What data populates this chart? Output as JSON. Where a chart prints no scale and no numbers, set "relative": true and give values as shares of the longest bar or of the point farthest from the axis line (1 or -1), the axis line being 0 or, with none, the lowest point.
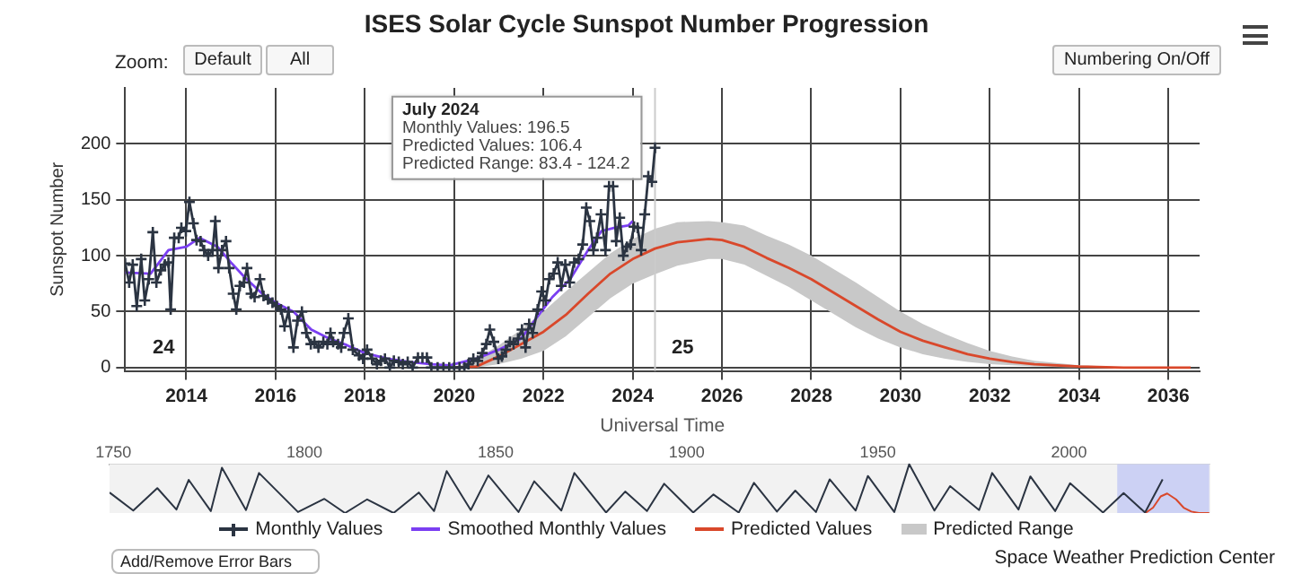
{
  "chart_data": [
    {
      "type": "line",
      "title": "ISES Solar Cycle Sunspot Number Progression",
      "xlabel": "Universal Time",
      "ylabel": "Sunspot Number",
      "xlim": [
        2012.63,
        2036.7
      ],
      "ylim": [
        -3,
        250
      ],
      "xticks": [
        2014,
        2016,
        2018,
        2020,
        2022,
        2024,
        2026,
        2028,
        2030,
        2032,
        2034,
        2036
      ],
      "yticks": [
        0,
        50,
        100,
        150,
        200
      ],
      "grid": true,
      "legend": "bottom",
      "series": [
        {
          "name": "Monthly Values",
          "type": "line",
          "marker": "cross",
          "color": "#2b3442",
          "x": [
            2012.63,
            2012.72,
            2012.8,
            2012.89,
            2012.99,
            2013.07,
            2013.16,
            2013.25,
            2013.33,
            2013.43,
            2013.52,
            2013.6,
            2013.65,
            2013.73,
            2013.83,
            2013.89,
            2013.99,
            2014.07,
            2014.16,
            2014.23,
            2014.32,
            2014.4,
            2014.49,
            2014.59,
            2014.65,
            2014.72,
            2014.8,
            2014.89,
            2014.96,
            2015.05,
            2015.12,
            2015.2,
            2015.29,
            2015.36,
            2015.45,
            2015.53,
            2015.65,
            2015.73,
            2015.83,
            2015.93,
            2016.03,
            2016.12,
            2016.2,
            2016.29,
            2016.4,
            2016.49,
            2016.59,
            2016.69,
            2016.79,
            2016.87,
            2016.96,
            2017.07,
            2017.16,
            2017.23,
            2017.29,
            2017.4,
            2017.47,
            2017.53,
            2017.63,
            2017.73,
            2017.87,
            2017.96,
            2018.05,
            2018.16,
            2018.27,
            2018.36,
            2018.45,
            2018.56,
            2018.65,
            2018.76,
            2018.85,
            2018.96,
            2019.07,
            2019.19,
            2019.29,
            2019.39,
            2019.49,
            2019.63,
            2019.76,
            2019.89,
            2020,
            2020.12,
            2020.23,
            2020.32,
            2020.43,
            2020.53,
            2020.63,
            2020.72,
            2020.8,
            2020.89,
            2020.99,
            2021.07,
            2021.16,
            2021.25,
            2021.33,
            2021.43,
            2021.52,
            2021.6,
            2021.68,
            2021.76,
            2021.87,
            2021.96,
            2022.05,
            2022.13,
            2022.23,
            2022.32,
            2022.4,
            2022.49,
            2022.59,
            2022.69,
            2022.79,
            2022.88,
            2022.96,
            2023.04,
            2023.12,
            2023.2,
            2023.29,
            2023.39,
            2023.47,
            2023.56,
            2023.63,
            2023.71,
            2023.79,
            2023.87,
            2023.95,
            2024.03,
            2024.11,
            2024.19,
            2024.27,
            2024.35,
            2024.43,
            2024.5
          ],
          "values": [
            93,
            76,
            92,
            55,
            97,
            60,
            79,
            121,
            76,
            87,
            92,
            94,
            52,
            116,
            116,
            125,
            122,
            148,
            129,
            114,
            113,
            105,
            100,
            105,
            131,
            89,
            105,
            113,
            89,
            66,
            52,
            73,
            76,
            89,
            66,
            63,
            79,
            64,
            61,
            58,
            55,
            52,
            37,
            50,
            18,
            42,
            50,
            31,
            21,
            23,
            18,
            23,
            21,
            31,
            23,
            21,
            18,
            31,
            44,
            16,
            11,
            8,
            16,
            8,
            3,
            6,
            8,
            0,
            6,
            5,
            3,
            5,
            0,
            9,
            9,
            9,
            0,
            0,
            0,
            0,
            0,
            0,
            0,
            3,
            8,
            6,
            13,
            21,
            34,
            23,
            8,
            10,
            16,
            23,
            21,
            26,
            34,
            18,
            39,
            31,
            52,
            68,
            60,
            79,
            84,
            94,
            73,
            92,
            76,
            94,
            97,
            110,
            143,
            131,
            105,
            116,
            137,
            105,
            162,
            162,
            113,
            134,
            100,
            108,
            110,
            126,
            125,
            105,
            137,
            171,
            166,
            196.5
          ]
        },
        {
          "name": "Smoothed Monthly Values",
          "type": "line",
          "color": "#7b3ff2",
          "x": [
            2012.63,
            2013.2,
            2013.6,
            2014,
            2014.3,
            2014.7,
            2015,
            2015.3,
            2015.7,
            2016,
            2016.4,
            2016.8,
            2017.2,
            2017.6,
            2018,
            2018.5,
            2019,
            2019.5,
            2019.9,
            2020.5,
            2021,
            2021.5,
            2021.8,
            2022.2,
            2022.6,
            2023,
            2023.3,
            2023.6,
            2023.9,
            2024
          ],
          "values": [
            85,
            84,
            105,
            108,
            116,
            108,
            94,
            81,
            66,
            58,
            50,
            34,
            26,
            20,
            13,
            8,
            5,
            3,
            2,
            8,
            16,
            26,
            42,
            63,
            79,
            105,
            122,
            125,
            127,
            131
          ]
        },
        {
          "name": "Predicted Values",
          "type": "line",
          "color": "#d9482b",
          "x": [
            2020,
            2020.5,
            2021,
            2021.5,
            2022,
            2022.5,
            2023,
            2023.5,
            2024,
            2024.5,
            2025,
            2025.7,
            2026,
            2026.5,
            2027,
            2027.5,
            2028,
            2028.5,
            2029,
            2029.5,
            2030,
            2030.5,
            2031,
            2031.5,
            2032,
            2032.5,
            2033,
            2034,
            2035,
            2036.5
          ],
          "values": [
            0,
            1,
            10,
            21,
            32,
            47,
            66,
            84,
            97,
            106.4,
            112,
            115,
            114,
            108,
            98,
            89,
            79,
            67,
            55,
            43,
            32,
            24,
            18,
            12,
            8,
            5,
            3,
            1,
            0,
            0
          ],
          "lower": [
            0,
            0,
            3,
            8,
            15,
            28,
            45,
            62,
            75,
            83.4,
            91,
            97,
            97,
            92,
            82,
            72,
            60,
            48,
            36,
            26,
            18,
            12,
            8,
            5,
            3,
            2,
            1,
            0,
            0,
            0
          ],
          "upper": [
            0,
            8,
            20,
            34,
            50,
            68,
            85,
            102,
            115,
            124.2,
            130,
            131,
            130,
            127,
            118,
            110,
            100,
            88,
            76,
            63,
            50,
            39,
            30,
            22,
            15,
            10,
            6,
            2,
            0.5,
            0
          ]
        },
        {
          "name": "Predicted Range",
          "type": "area",
          "color": "#c8c8c8"
        }
      ],
      "ref_lines": [
        {
          "axis": "x",
          "value": 2024.5,
          "color": "#cccccc"
        }
      ],
      "annotations": [
        "24",
        "25",
        {
          "text": "July 2024\nMonthly Values: 196.5\nPredicted Values: 106.4\nPredicted Range: 83.4 - 124.2",
          "x": 2024.5,
          "y": 196.5
        },
        "Zoom:",
        "Default",
        "All",
        "Numbering On/Off",
        "Add/Remove Error Bars",
        "Space Weather Prediction Center"
      ]
    },
    {
      "type": "line",
      "relative": true,
      "xlim": [
        1749,
        2037
      ],
      "xticks": [
        1750,
        1800,
        1850,
        1900,
        1950,
        2000
      ],
      "tick_labels": "x",
      "grid": "x",
      "bands": [
        {
          "axis": "x",
          "from": 2012.63,
          "to": 2036.7,
          "color": "#c5cbf5"
        }
      ],
      "series": [
        {
          "type": "line",
          "color": "#2b3442",
          "x": [
            1749,
            1755.2,
            1761.5,
            1766.5,
            1769.7,
            1775.5,
            1778.4,
            1784.7,
            1788.1,
            1798.3,
            1805.2,
            1810.6,
            1816.4,
            1823.3,
            1829.9,
            1833.9,
            1837.2,
            1843.5,
            1848.1,
            1856,
            1860.1,
            1867.2,
            1870.6,
            1878.9,
            1883.9,
            1889.6,
            1894.1,
            1901.7,
            1907,
            1913.6,
            1917.6,
            1923.6,
            1928.4,
            1933.8,
            1937.4,
            1944.2,
            1947.4,
            1954.3,
            1958.2,
            1964.8,
            1968.9,
            1976.5,
            1979.9,
            1986.8,
            1989.9,
            1996.4,
            2000.3,
            2008.9,
            2014.3,
            2019.9,
            2024.5
          ],
          "values": [
            0.42,
            0.05,
            0.51,
            0.07,
            0.68,
            0.04,
            0.93,
            0.06,
            0.82,
            0.02,
            0.29,
            0,
            0.28,
            0,
            0.42,
            0.04,
            0.86,
            0.06,
            0.77,
            0.02,
            0.65,
            0.05,
            0.82,
            0.01,
            0.44,
            0.04,
            0.6,
            0.01,
            0.38,
            0.01,
            0.62,
            0.03,
            0.46,
            0.02,
            0.69,
            0.05,
            0.76,
            0.02,
            1,
            0.05,
            0.55,
            0.06,
            0.82,
            0.07,
            0.75,
            0.04,
            0.61,
            0.01,
            0.41,
            0.01,
            0.69
          ]
        },
        {
          "type": "line",
          "color": "#d9482b",
          "x": [
            2020,
            2022,
            2024,
            2025.7,
            2028,
            2030,
            2032,
            2034,
            2036.7
          ],
          "values": [
            0,
            0.11,
            0.34,
            0.4,
            0.28,
            0.11,
            0.03,
            0,
            0
          ]
        }
      ]
    }
  ]
}
